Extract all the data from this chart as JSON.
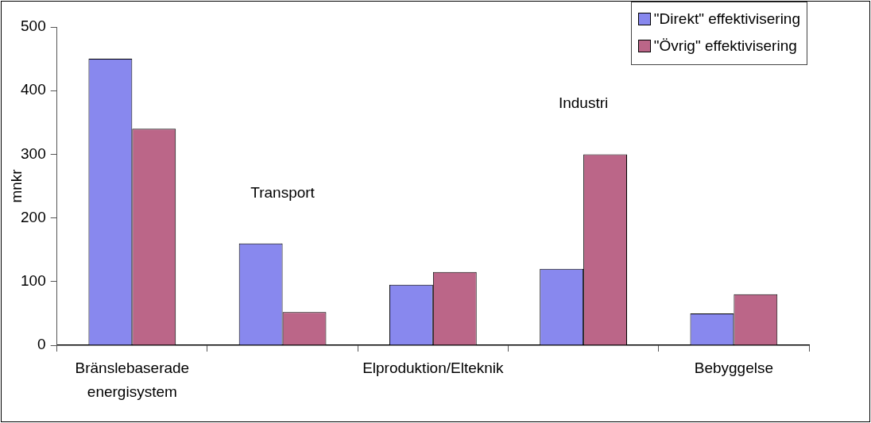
{
  "chart_data": {
    "type": "bar",
    "ylabel": "mnkr",
    "categories": [
      "Bränslebaserade energisystem",
      "Transport",
      "Elproduktion/Elteknik",
      "Industri",
      "Bebyggelse"
    ],
    "series": [
      {
        "name": "\"Direkt\" effektivisering",
        "color": "#8888ee",
        "values": [
          450,
          160,
          95,
          120,
          50
        ]
      },
      {
        "name": "\"Övrig\" effektivisering",
        "color": "#bb6688",
        "values": [
          340,
          52,
          115,
          300,
          80
        ]
      }
    ],
    "ylim": [
      0,
      500
    ],
    "yticks": [
      0,
      100,
      200,
      300,
      400,
      500
    ],
    "grid": false,
    "legend": "top right"
  }
}
